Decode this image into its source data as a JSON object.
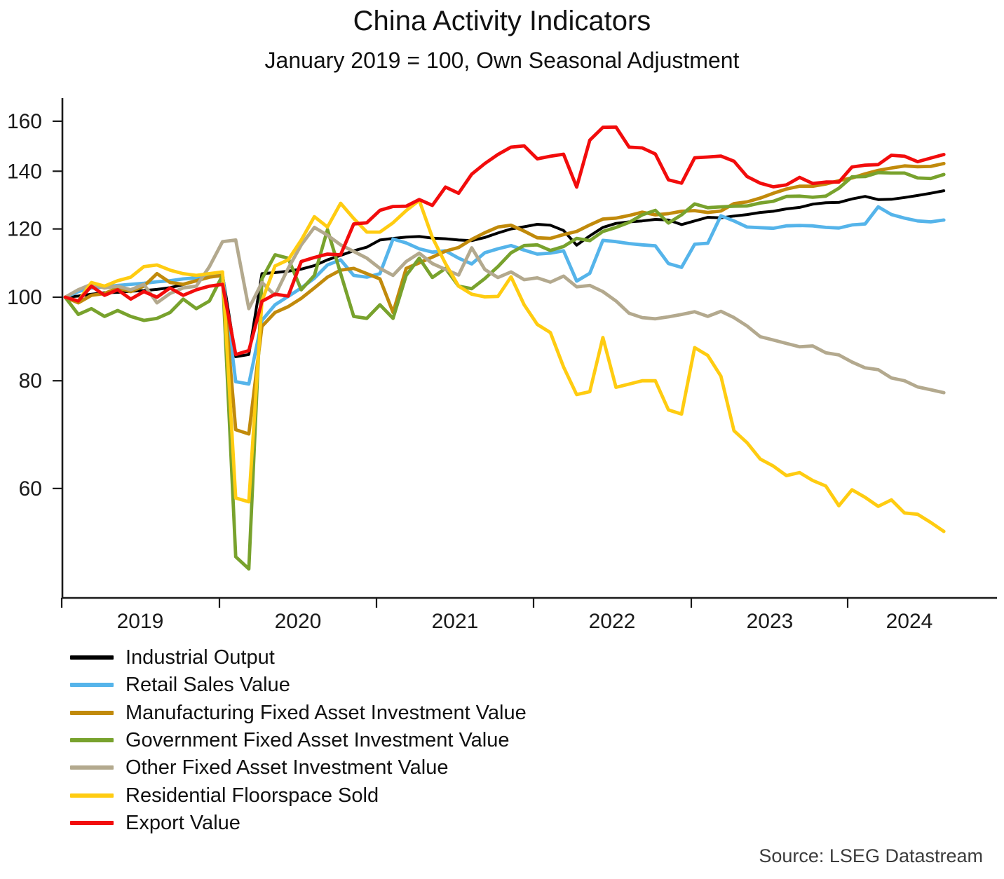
{
  "chart": {
    "title": "China Activity Indicators",
    "subtitle": "January 2019 = 100, Own Seasonal Adjustment",
    "source": "Source: LSEG Datastream"
  },
  "chart_data": {
    "type": "line",
    "title": "China Activity Indicators",
    "subtitle": "January 2019 = 100, Own Seasonal Adjustment",
    "source": "Source: LSEG Datastream",
    "x_frequency": "monthly",
    "x_start": "2019-01",
    "x_end": "2024-08",
    "x_tick_labels": [
      "2019",
      "2020",
      "2021",
      "2022",
      "2023",
      "2024"
    ],
    "y_ticks": [
      60,
      80,
      100,
      120,
      140,
      160
    ],
    "y_scale": "log",
    "ylim": [
      44,
      170
    ],
    "grid": false,
    "legend_position": "bottom-left",
    "axis_color": "#1a1a1a",
    "series": [
      {
        "name": "Industrial Output",
        "color": "#000000",
        "values": [
          100,
          100.3,
          100.8,
          101.2,
          101.3,
          101.6,
          101.8,
          102.1,
          102.6,
          103.4,
          104.5,
          105.8,
          106.3,
          85.3,
          85.8,
          106.5,
          106.8,
          107.2,
          107.8,
          108.8,
          110.5,
          111.8,
          113.2,
          114.3,
          116.5,
          117,
          117.4,
          117.6,
          117.1,
          116.9,
          116.5,
          116.3,
          117.3,
          118.7,
          120,
          120.7,
          121.5,
          121.2,
          119.5,
          114.9,
          117.8,
          120.5,
          121.8,
          122.3,
          122.6,
          123.1,
          122.9,
          121.4,
          122.6,
          123.8,
          123.6,
          124.2,
          124.7,
          125.4,
          125.8,
          126.6,
          127.1,
          128.2,
          128.7,
          128.8,
          130,
          130.9,
          129.8,
          129.9,
          130.5,
          131.2,
          132,
          132.9
        ]
      },
      {
        "name": "Retail Sales Value",
        "color": "#55B4EA",
        "values": [
          100,
          101.5,
          102.5,
          102.8,
          103.2,
          103.5,
          103.8,
          104.2,
          104.5,
          105,
          105.3,
          105.8,
          106.2,
          79.8,
          79.3,
          94,
          98,
          100.2,
          102.5,
          105.2,
          109,
          110.5,
          106,
          105.5,
          106.5,
          116.8,
          115.6,
          113.8,
          112.8,
          113.2,
          111,
          109.3,
          112.6,
          113.8,
          114.8,
          113.4,
          112.2,
          112.5,
          113.2,
          104.4,
          106.6,
          116.4,
          116,
          115.4,
          115,
          114.7,
          109.4,
          108.3,
          115.2,
          115.5,
          124.3,
          122.6,
          120.6,
          120.4,
          120.2,
          121,
          121.1,
          121,
          120.5,
          120.3,
          121.3,
          121.6,
          127.3,
          124.7,
          123.5,
          122.6,
          122.3,
          122.9
        ]
      },
      {
        "name": "Manufacturing Fixed Asset Investment Value",
        "color": "#C18A0B",
        "values": [
          100,
          98.5,
          100.5,
          101,
          102.5,
          101.5,
          103,
          106.5,
          104,
          103.5,
          104.5,
          105.5,
          106,
          70.2,
          69.4,
          92.5,
          96,
          97.5,
          99.7,
          102.5,
          105.5,
          107.5,
          108,
          106.5,
          105,
          96,
          108,
          109.6,
          111.3,
          113.1,
          114.2,
          116.7,
          118.8,
          120.6,
          121.2,
          119.3,
          117.2,
          117,
          118.2,
          119.2,
          121.3,
          123.2,
          123.5,
          124.4,
          125.5,
          124.6,
          125,
          125.8,
          126,
          125.4,
          125.9,
          128.4,
          129,
          130.3,
          132,
          133.5,
          134.5,
          134.5,
          135.3,
          136.5,
          137.5,
          139,
          140.3,
          141.2,
          142,
          141.7,
          141.8,
          142.9
        ]
      },
      {
        "name": "Government Fixed Asset Investment Value",
        "color": "#78A22D",
        "values": [
          100,
          95.5,
          97,
          95,
          96.5,
          95,
          94,
          94.5,
          96,
          99.5,
          97,
          99,
          106,
          50,
          48.4,
          105,
          112,
          111,
          102,
          106,
          119.8,
          106.6,
          95,
          94.5,
          98,
          94.5,
          106,
          111,
          105.4,
          108,
          103,
          102.3,
          105.1,
          108.5,
          112.6,
          114.8,
          115,
          113.3,
          114.5,
          117,
          116.3,
          119.2,
          120.5,
          122.1,
          124.6,
          126.1,
          121.9,
          124.6,
          128.3,
          127,
          127.3,
          127.5,
          127.6,
          128.6,
          129.2,
          130.9,
          131,
          130.6,
          131,
          133.8,
          137.9,
          138,
          139.5,
          139.3,
          139.3,
          137.5,
          137.3,
          138.8
        ]
      },
      {
        "name": "Other Fixed Asset Investment Value",
        "color": "#B3A98E",
        "values": [
          100,
          102,
          103.5,
          102.5,
          103,
          102,
          103.5,
          98.5,
          101,
          102.5,
          103,
          108.5,
          116,
          116.5,
          97,
          104,
          100.5,
          108,
          115,
          120.5,
          118,
          115,
          113,
          111,
          108,
          106,
          110,
          112.5,
          109.4,
          107.7,
          106.1,
          114.1,
          107.7,
          105.4,
          107,
          104.8,
          105.3,
          104.1,
          105.8,
          102.8,
          103.2,
          101.5,
          99,
          95.8,
          94.7,
          94.4,
          94.9,
          95.5,
          96.2,
          95,
          96.3,
          94.7,
          92.6,
          90,
          89.2,
          88.4,
          87.6,
          87.8,
          86.2,
          85.7,
          84.1,
          82.8,
          82.4,
          80.6,
          80,
          78.7,
          78.1,
          77.5
        ]
      },
      {
        "name": "Residential Floorspace Sold",
        "color": "#FFCC11",
        "values": [
          100,
          99,
          104,
          103,
          104.5,
          105.5,
          108.5,
          109,
          107.5,
          106.5,
          106,
          106.5,
          107,
          58.5,
          57.9,
          99,
          108.7,
          110.5,
          116.5,
          124,
          120.6,
          128.5,
          123.4,
          119,
          119,
          122,
          126,
          129.5,
          117.3,
          109.4,
          103,
          100.8,
          100.1,
          100.2,
          105.6,
          98,
          93,
          91,
          83,
          77.1,
          77.7,
          89.8,
          78.6,
          79.3,
          80,
          80,
          74,
          73.2,
          87.4,
          85.6,
          81,
          70,
          67.8,
          64.9,
          63.7,
          62.1,
          62.6,
          61.3,
          60.4,
          57.3,
          59.8,
          58.6,
          57.2,
          58.2,
          56.2,
          56,
          54.8,
          53.5
        ]
      },
      {
        "name": "Export Value",
        "color": "#F20C0C",
        "values": [
          100,
          99,
          103,
          100.5,
          102,
          99.5,
          101.5,
          100,
          102.5,
          100.5,
          102,
          103,
          103.5,
          85.8,
          86.7,
          98.9,
          100.8,
          100.3,
          110,
          111.2,
          112.2,
          112,
          121.6,
          122,
          126.1,
          127.4,
          127.5,
          129.8,
          127.8,
          134.2,
          132,
          138.9,
          142.9,
          146.4,
          149.3,
          149.8,
          144.7,
          145.7,
          146.5,
          134.2,
          152.1,
          157.4,
          157.5,
          149.3,
          149,
          146.6,
          136.8,
          135.6,
          145.1,
          145.4,
          145.8,
          143.8,
          138,
          135.6,
          134.3,
          135,
          137.7,
          135.5,
          136,
          136,
          141.6,
          142.3,
          142.5,
          146.1,
          145.7,
          143.6,
          145,
          146.4
        ]
      }
    ]
  }
}
